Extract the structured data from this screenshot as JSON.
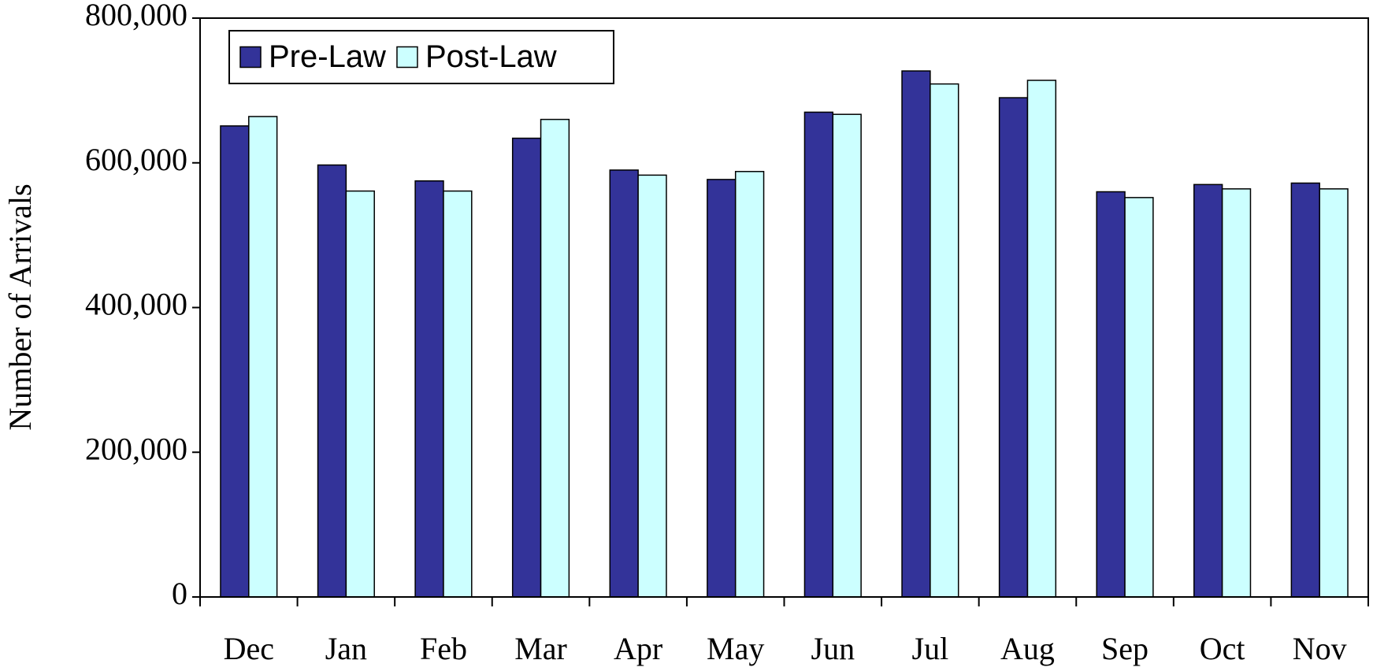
{
  "chart_data": {
    "type": "bar",
    "y_label": "Number of Arrivals",
    "categories": [
      "Dec",
      "Jan",
      "Feb",
      "Mar",
      "Apr",
      "May",
      "Jun",
      "Jul",
      "Aug",
      "Sep",
      "Oct",
      "Nov"
    ],
    "series": [
      {
        "name": "Pre-Law",
        "color": "#333399",
        "values": [
          651000,
          597000,
          575000,
          634000,
          590000,
          577000,
          670000,
          727000,
          690000,
          560000,
          570000,
          572000
        ]
      },
      {
        "name": "Post-Law",
        "color": "#ccffff",
        "values": [
          664000,
          561000,
          561000,
          660000,
          583000,
          588000,
          667000,
          709000,
          714000,
          552000,
          564000,
          564000
        ]
      }
    ],
    "ylim": [
      0,
      800000
    ],
    "yticks": [
      0,
      {
        "value": 200000,
        "label": "200,000"
      },
      {
        "value": 400000,
        "label": "400,000"
      },
      {
        "value": 600000,
        "label": "600,000"
      },
      {
        "value": 800000,
        "label": "800,000"
      }
    ],
    "grid": false,
    "legend": "top-left"
  }
}
